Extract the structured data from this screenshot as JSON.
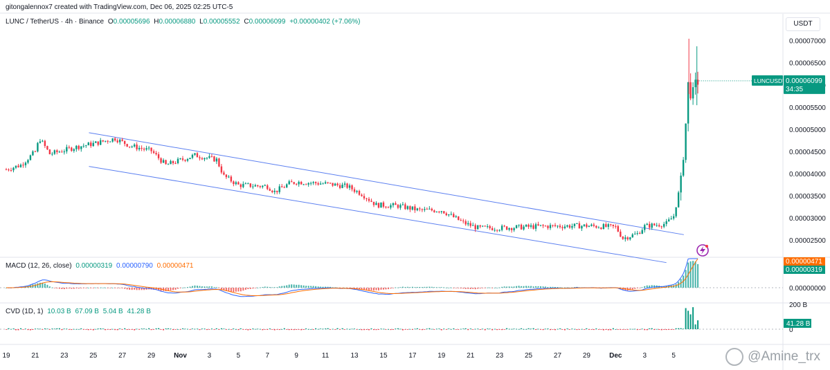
{
  "header": {
    "credit": "gitongalennox7 created with TradingView.com, Dec 06, 2025 02:25 UTC-5"
  },
  "legend": {
    "symbol": "LUNC / TetherUS · 4h · Binance",
    "o_label": "O",
    "o_value": "0.00005696",
    "h_label": "H",
    "h_value": "0.00006880",
    "l_label": "L",
    "l_value": "0.00005552",
    "c_label": "C",
    "c_value": "0.00006099",
    "change": "+0.00000402 (+7.06%)"
  },
  "currency": "USDT",
  "macd_legend": {
    "label": "MACD (12, 26, close)",
    "hist": "0.00000319",
    "macd": "0.00000790",
    "signal": "0.00000471"
  },
  "cvd_legend": {
    "label": "CVD (1D, 1)",
    "v1": "10.03 B",
    "v2": "67.09 B",
    "v3": "5.04 B",
    "v4": "41.28 B"
  },
  "watermark": "@Amine_trx",
  "colors": {
    "up": "#089981",
    "down": "#f23645",
    "channel": "#5b7ff0",
    "macd_line": "#2962ff",
    "signal_line": "#ff6d00",
    "pill": "#089981",
    "signal_pill": "#ff6d00"
  },
  "chart_data": {
    "type": "candlestick",
    "interval": "4h",
    "y_axis": {
      "ticks": [
        "0.00007000",
        "0.00006500",
        "0.00006000",
        "0.00005500",
        "0.00005000",
        "0.00004500",
        "0.00004000",
        "0.00003500",
        "0.00003000",
        "0.00002500"
      ],
      "range": [
        2.12e-05,
        7.58e-05
      ]
    },
    "x_axis": {
      "ticks": [
        "19",
        "21",
        "23",
        "25",
        "27",
        "29",
        "Nov",
        "3",
        "5",
        "7",
        "9",
        "11",
        "13",
        "15",
        "17",
        "19",
        "21",
        "23",
        "25",
        "27",
        "29",
        "Dec",
        "3",
        "5"
      ],
      "start_day": 19,
      "days": 49
    },
    "price_label": {
      "name": "LUNCUSDT",
      "value": "0.00006099",
      "countdown": "34:35"
    },
    "anchors": [
      [
        0.0,
        4.1e-05
      ],
      [
        1.0,
        4.2e-05
      ],
      [
        2.0,
        4.5e-05
      ],
      [
        2.3,
        4.8e-05
      ],
      [
        3.0,
        4.45e-05
      ],
      [
        5.0,
        4.62e-05
      ],
      [
        6.0,
        4.68e-05
      ],
      [
        7.5,
        4.8e-05
      ],
      [
        8.5,
        4.64e-05
      ],
      [
        10.0,
        4.52e-05
      ],
      [
        11.0,
        4.2e-05
      ],
      [
        13.0,
        4.42e-05
      ],
      [
        14.5,
        4.32e-05
      ],
      [
        15.0,
        3.95e-05
      ],
      [
        16.0,
        3.75e-05
      ],
      [
        18.0,
        3.72e-05
      ],
      [
        18.5,
        3.6e-05
      ],
      [
        19.5,
        3.78e-05
      ],
      [
        20.0,
        3.82e-05
      ],
      [
        22.0,
        3.78e-05
      ],
      [
        23.5,
        3.72e-05
      ],
      [
        24.5,
        3.55e-05
      ],
      [
        25.5,
        3.3e-05
      ],
      [
        27.0,
        3.28e-05
      ],
      [
        28.5,
        3.18e-05
      ],
      [
        30.0,
        3.18e-05
      ],
      [
        31.5,
        2.9e-05
      ],
      [
        32.5,
        2.78e-05
      ],
      [
        34.0,
        2.78e-05
      ],
      [
        37.0,
        2.82e-05
      ],
      [
        40.0,
        2.83e-05
      ],
      [
        42.0,
        2.8e-05
      ],
      [
        42.5,
        2.55e-05
      ],
      [
        43.5,
        2.65e-05
      ],
      [
        44.0,
        2.82e-05
      ],
      [
        45.5,
        2.88e-05
      ],
      [
        46.0,
        3.05e-05
      ],
      [
        46.5,
        3.8e-05
      ],
      [
        46.9,
        5.4e-05
      ],
      [
        47.0,
        6e-05
      ],
      [
        47.3,
        5.75e-05
      ],
      [
        47.6,
        6.1e-05
      ]
    ],
    "channel": {
      "upper": [
        [
          5.7,
          4.93e-05
        ],
        [
          46.7,
          2.63e-05
        ]
      ],
      "lower": [
        [
          5.7,
          4.17e-05
        ],
        [
          45.5,
          2e-05
        ]
      ]
    },
    "macd": {
      "values_label": {
        "hist": "0.00000319",
        "macd": "0.00000790",
        "signal": "0.00000471"
      },
      "zero_label": "0.00000000"
    },
    "cvd": {
      "ticks": [
        "200 B",
        "0"
      ],
      "last_label": "41.28 B"
    }
  }
}
